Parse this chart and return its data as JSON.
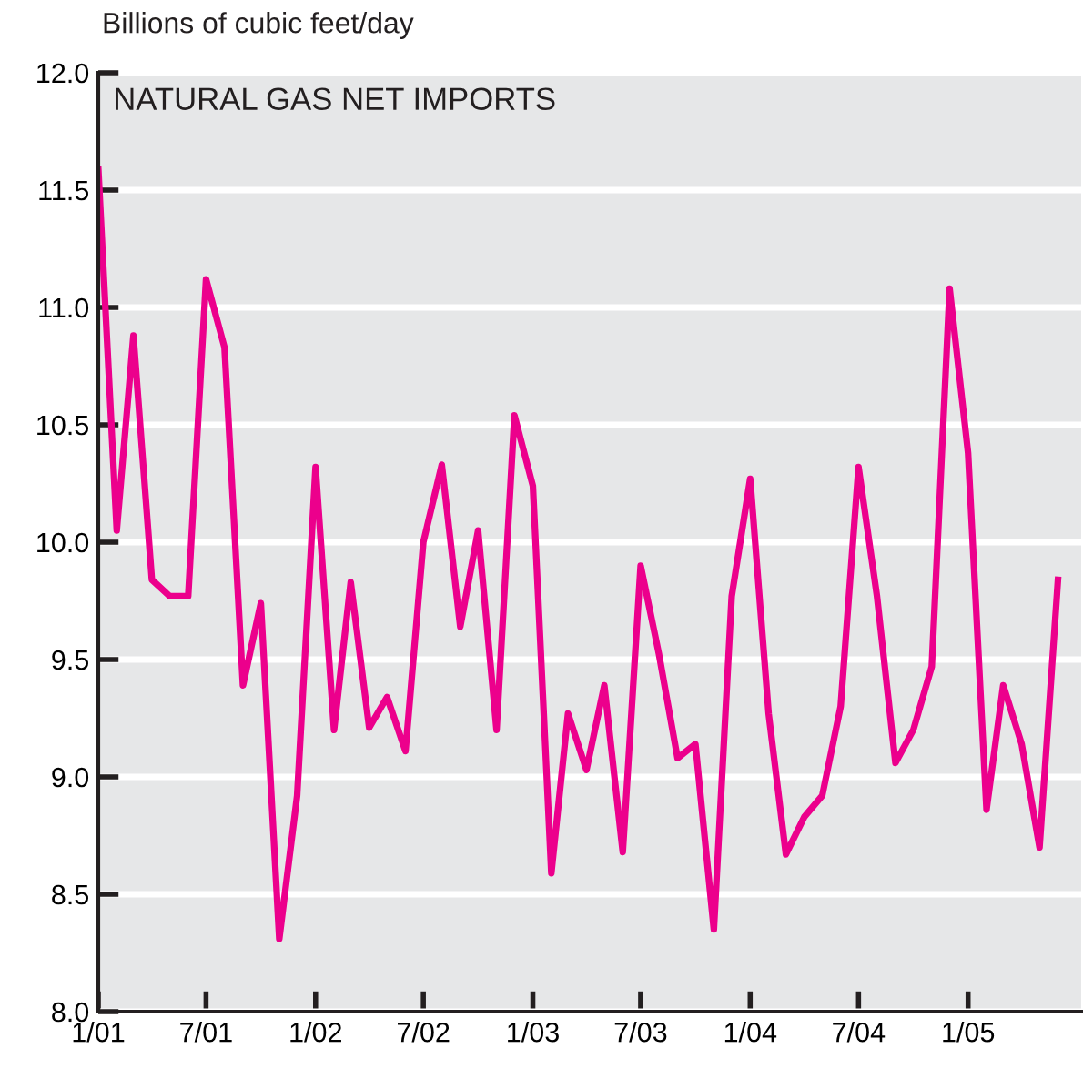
{
  "chart_data": {
    "type": "line",
    "title": "NATURAL GAS NET IMPORTS",
    "ylabel": "Billions of cubic feet/day",
    "x": [
      "2001-01",
      "2001-02",
      "2001-03",
      "2001-04",
      "2001-05",
      "2001-06",
      "2001-07",
      "2001-08",
      "2001-09",
      "2001-10",
      "2001-11",
      "2001-12",
      "2002-01",
      "2002-02",
      "2002-03",
      "2002-04",
      "2002-05",
      "2002-06",
      "2002-07",
      "2002-08",
      "2002-09",
      "2002-10",
      "2002-11",
      "2002-12",
      "2003-01",
      "2003-02",
      "2003-03",
      "2003-04",
      "2003-05",
      "2003-06",
      "2003-07",
      "2003-08",
      "2003-09",
      "2003-10",
      "2003-11",
      "2003-12",
      "2004-01",
      "2004-02",
      "2004-03",
      "2004-04",
      "2004-05",
      "2004-06",
      "2004-07",
      "2004-08",
      "2004-09",
      "2004-10",
      "2004-11",
      "2004-12",
      "2005-01",
      "2005-02",
      "2005-03",
      "2005-04",
      "2005-05",
      "2005-06"
    ],
    "series": [
      {
        "color": "#ec008c",
        "values": [
          11.59,
          10.05,
          10.88,
          9.84,
          9.77,
          9.77,
          11.12,
          10.83,
          9.39,
          9.74,
          8.31,
          8.92,
          10.32,
          9.2,
          9.83,
          9.21,
          9.34,
          9.11,
          10.0,
          10.33,
          9.64,
          10.05,
          9.2,
          10.54,
          10.24,
          8.59,
          9.27,
          9.03,
          9.39,
          8.68,
          9.9,
          9.52,
          9.08,
          9.14,
          8.35,
          9.77,
          10.27,
          9.27,
          8.67,
          8.83,
          8.92,
          9.3,
          10.32,
          9.77,
          9.06,
          9.2,
          9.47,
          11.08,
          10.38,
          8.86,
          9.39,
          9.14,
          8.7,
          9.84
        ]
      }
    ],
    "xlim": [
      "2001-01-01",
      "2005-07-10"
    ],
    "xticks": [
      {
        "value": "2001-01",
        "label": "1/01"
      },
      {
        "value": "2001-07",
        "label": "7/01"
      },
      {
        "value": "2002-01",
        "label": "1/02"
      },
      {
        "value": "2002-07",
        "label": "7/02"
      },
      {
        "value": "2003-01",
        "label": "1/03"
      },
      {
        "value": "2003-07",
        "label": "7/03"
      },
      {
        "value": "2004-01",
        "label": "1/04"
      },
      {
        "value": "2004-07",
        "label": "7/04"
      },
      {
        "value": "2005-01",
        "label": "1/05"
      }
    ],
    "ylim": [
      8.0,
      12.0
    ],
    "yticks": [
      {
        "value": 8.0,
        "label": "8.0"
      },
      {
        "value": 8.5,
        "label": "8.5"
      },
      {
        "value": 9.0,
        "label": "9.0"
      },
      {
        "value": 9.5,
        "label": "9.5"
      },
      {
        "value": 10.0,
        "label": "10.0"
      },
      {
        "value": 10.5,
        "label": "10.5"
      },
      {
        "value": 11.0,
        "label": "11.0"
      },
      {
        "value": 11.5,
        "label": "11.5"
      },
      {
        "value": 12.0,
        "label": "12.0"
      }
    ],
    "grid": "y",
    "marker": "none",
    "line_style": "solid"
  }
}
